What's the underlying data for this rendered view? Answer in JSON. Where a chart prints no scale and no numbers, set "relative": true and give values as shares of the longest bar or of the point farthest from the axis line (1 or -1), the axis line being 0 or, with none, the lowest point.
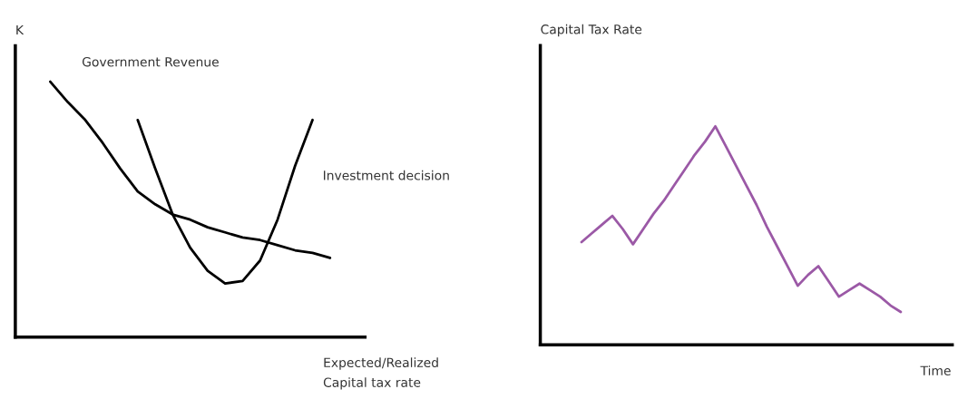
{
  "chart_data": [
    {
      "type": "line",
      "relative": true,
      "ylabel": "K",
      "xlabel": "Expected/Realized\nCapital tax rate",
      "tick_labels": false,
      "categories": [
        null,
        null,
        null,
        null,
        null,
        null,
        null,
        null,
        null,
        null,
        null,
        null,
        null,
        null,
        null,
        null,
        null
      ],
      "series": [
        {
          "name": "Government Revenue",
          "color": "#000000",
          "values": [
            1,
            0.92,
            0.85,
            0.76,
            0.66,
            0.57,
            0.52,
            0.48,
            0.46,
            0.43,
            0.41,
            0.39,
            0.38,
            0.36,
            0.34,
            0.33,
            0.31
          ]
        },
        {
          "name": "Investment decision",
          "color": "#000000",
          "values": [
            null,
            null,
            null,
            null,
            null,
            0.85,
            0.66,
            0.48,
            0.35,
            0.26,
            0.21,
            0.22,
            0.3,
            0.46,
            0.67,
            0.85,
            null
          ]
        }
      ]
    },
    {
      "type": "line",
      "relative": true,
      "ylabel": "Capital Tax Rate",
      "xlabel": "Time",
      "tick_labels": false,
      "categories": [
        null,
        null,
        null,
        null,
        null,
        null,
        null,
        null,
        null,
        null,
        null,
        null,
        null,
        null,
        null,
        null,
        null,
        null,
        null,
        null,
        null,
        null,
        null,
        null,
        null,
        null,
        null,
        null,
        null,
        null,
        null,
        null
      ],
      "series": [
        {
          "color": "#9b59a6",
          "values": [
            0.47,
            0.51,
            0.55,
            0.59,
            0.53,
            0.46,
            0.53,
            0.6,
            0.66,
            0.73,
            0.8,
            0.87,
            0.93,
            1,
            0.91,
            0.82,
            0.73,
            0.64,
            0.54,
            0.45,
            0.36,
            0.27,
            0.32,
            0.36,
            0.29,
            0.22,
            0.25,
            0.28,
            0.25,
            0.22,
            0.18,
            0.15
          ]
        }
      ]
    }
  ]
}
